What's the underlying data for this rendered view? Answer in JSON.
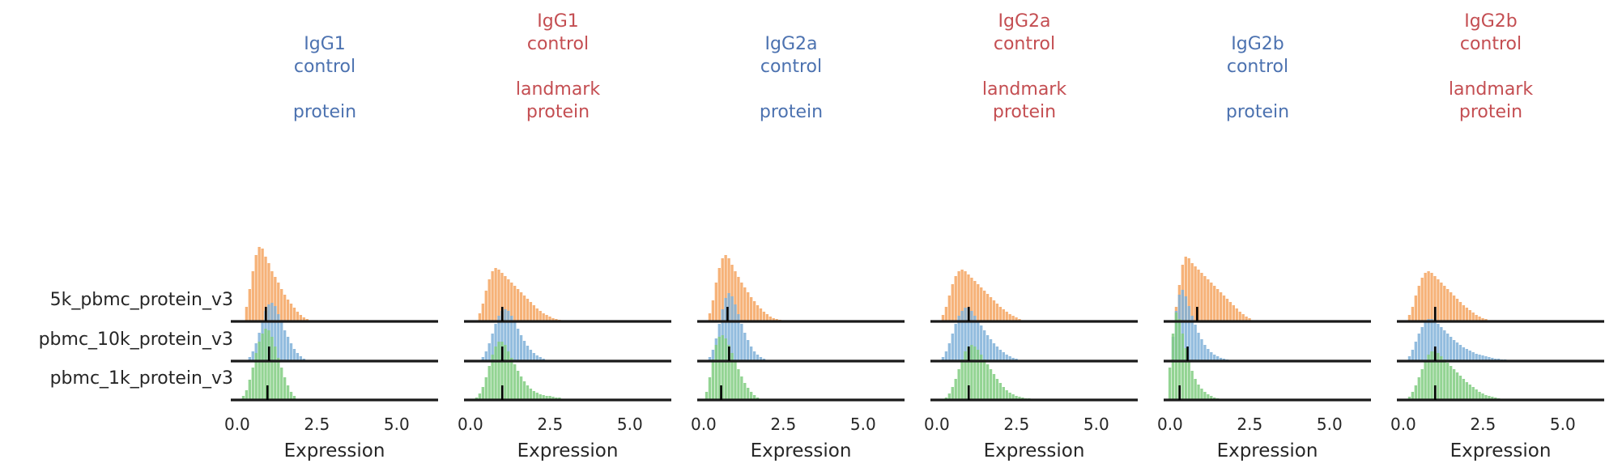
{
  "chart_data": {
    "type": "histogram",
    "xlabel": "Expression",
    "xlim": [
      -0.2,
      6.3
    ],
    "xticks": [
      0.0,
      2.5,
      5.0
    ],
    "xtick_labels": [
      "0.0",
      "2.5",
      "5.0"
    ],
    "grid": false,
    "samples": [
      "5k_pbmc_protein_v3",
      "pbmc_10k_protein_v3",
      "pbmc_1k_protein_v3"
    ],
    "sample_colors": [
      "#f4a460",
      "#7fb0d8",
      "#80cc80"
    ],
    "median_marker_color": "#000000",
    "panels": [
      {
        "title_lines": [
          "IgG1",
          "control",
          "",
          "protein"
        ],
        "title_color": "#4c72b0",
        "medians": [
          0.9,
          1.0,
          0.95
        ],
        "hist": [
          {
            "x": [
              0.3,
              0.4,
              0.5,
              0.6,
              0.7,
              0.8,
              0.9,
              1.0,
              1.1,
              1.2,
              1.3,
              1.4,
              1.5,
              1.6,
              1.7,
              1.8,
              1.9,
              2.0,
              2.1,
              2.2
            ],
            "y": [
              18,
              40,
              62,
              82,
              92,
              90,
              80,
              72,
              62,
              55,
              48,
              40,
              33,
              27,
              22,
              17,
              12,
              8,
              5,
              3
            ]
          },
          {
            "x": [
              0.4,
              0.5,
              0.6,
              0.7,
              0.8,
              0.9,
              1.0,
              1.1,
              1.2,
              1.3,
              1.4,
              1.5,
              1.6,
              1.7,
              1.8,
              1.9,
              2.0,
              2.1
            ],
            "y": [
              5,
              12,
              22,
              35,
              50,
              62,
              70,
              72,
              68,
              58,
              48,
              38,
              30,
              22,
              15,
              10,
              6,
              3
            ]
          },
          {
            "x": [
              0.2,
              0.3,
              0.4,
              0.5,
              0.6,
              0.7,
              0.8,
              0.9,
              1.0,
              1.1,
              1.2,
              1.3,
              1.4,
              1.5,
              1.6,
              1.7,
              1.8
            ],
            "y": [
              5,
              12,
              25,
              40,
              58,
              72,
              82,
              88,
              86,
              78,
              66,
              52,
              40,
              28,
              18,
              10,
              5
            ]
          }
        ]
      },
      {
        "title_lines": [
          "IgG1",
          "control",
          "",
          "landmark",
          "protein"
        ],
        "title_color": "#c44e52",
        "medians": [
          1.0,
          1.0,
          1.0
        ],
        "hist": [
          {
            "x": [
              0.3,
              0.4,
              0.5,
              0.6,
              0.7,
              0.8,
              0.9,
              1.0,
              1.1,
              1.2,
              1.3,
              1.4,
              1.5,
              1.6,
              1.7,
              1.8,
              1.9,
              2.0,
              2.1,
              2.2,
              2.3,
              2.4,
              2.5,
              2.6,
              2.7,
              2.8
            ],
            "y": [
              10,
              22,
              38,
              52,
              62,
              66,
              64,
              60,
              56,
              52,
              48,
              44,
              40,
              36,
              32,
              28,
              24,
              20,
              16,
              13,
              10,
              8,
              6,
              4,
              3,
              2
            ]
          },
          {
            "x": [
              0.4,
              0.5,
              0.6,
              0.7,
              0.8,
              0.9,
              1.0,
              1.1,
              1.2,
              1.3,
              1.4,
              1.5,
              1.6,
              1.7,
              1.8,
              1.9,
              2.0,
              2.1,
              2.2,
              2.3
            ],
            "y": [
              5,
              12,
              22,
              34,
              46,
              56,
              62,
              64,
              62,
              56,
              48,
              40,
              32,
              25,
              19,
              14,
              10,
              7,
              5,
              3
            ]
          },
          {
            "x": [
              0.2,
              0.3,
              0.4,
              0.5,
              0.6,
              0.7,
              0.8,
              0.9,
              1.0,
              1.1,
              1.2,
              1.3,
              1.4,
              1.5,
              1.6,
              1.7,
              1.8,
              1.9,
              2.0,
              2.1,
              2.2,
              2.3,
              2.4,
              2.5,
              2.6,
              2.7,
              2.8
            ],
            "y": [
              3,
              8,
              16,
              28,
              42,
              56,
              66,
              72,
              72,
              68,
              60,
              52,
              44,
              36,
              29,
              23,
              18,
              14,
              11,
              9,
              7,
              6,
              5,
              5,
              4,
              3,
              3
            ]
          }
        ]
      },
      {
        "title_lines": [
          "IgG2a",
          "control",
          "",
          "protein"
        ],
        "title_color": "#4c72b0",
        "medians": [
          0.75,
          0.8,
          0.55
        ],
        "hist": [
          {
            "x": [
              0.2,
              0.3,
              0.4,
              0.5,
              0.6,
              0.7,
              0.8,
              0.9,
              1.0,
              1.1,
              1.2,
              1.3,
              1.4,
              1.5,
              1.6,
              1.7,
              1.8,
              1.9,
              2.0,
              2.1,
              2.2,
              2.3,
              2.4
            ],
            "y": [
              10,
              26,
              48,
              66,
              78,
              82,
              78,
              70,
              62,
              55,
              48,
              42,
              36,
              30,
              25,
              20,
              16,
              12,
              9,
              6,
              4,
              3,
              2
            ]
          },
          {
            "x": [
              0.2,
              0.3,
              0.4,
              0.5,
              0.6,
              0.7,
              0.8,
              0.9,
              1.0,
              1.1,
              1.2,
              1.3,
              1.4,
              1.5,
              1.6,
              1.7,
              1.8,
              1.9
            ],
            "y": [
              5,
              14,
              28,
              46,
              64,
              78,
              84,
              80,
              70,
              58,
              46,
              35,
              26,
              18,
              12,
              8,
              5,
              3
            ]
          },
          {
            "x": [
              0.1,
              0.2,
              0.3,
              0.4,
              0.5,
              0.6,
              0.7,
              0.8,
              0.9,
              1.0,
              1.1,
              1.2,
              1.3,
              1.4,
              1.5,
              1.6,
              1.7
            ],
            "y": [
              10,
              28,
              50,
              68,
              78,
              80,
              76,
              68,
              58,
              48,
              38,
              29,
              21,
              15,
              10,
              6,
              3
            ]
          }
        ]
      },
      {
        "title_lines": [
          "IgG2a",
          "control",
          "",
          "landmark",
          "protein"
        ],
        "title_color": "#c44e52",
        "medians": [
          1.0,
          1.0,
          1.0
        ],
        "hist": [
          {
            "x": [
              0.2,
              0.3,
              0.4,
              0.5,
              0.6,
              0.7,
              0.8,
              0.9,
              1.0,
              1.1,
              1.2,
              1.3,
              1.4,
              1.5,
              1.6,
              1.7,
              1.8,
              1.9,
              2.0,
              2.1,
              2.2,
              2.3,
              2.4,
              2.5,
              2.6
            ],
            "y": [
              8,
              18,
              32,
              46,
              56,
              62,
              64,
              62,
              58,
              54,
              50,
              46,
              42,
              38,
              34,
              30,
              26,
              22,
              18,
              15,
              12,
              9,
              7,
              5,
              3
            ]
          },
          {
            "x": [
              0.2,
              0.3,
              0.4,
              0.5,
              0.6,
              0.7,
              0.8,
              0.9,
              1.0,
              1.1,
              1.2,
              1.3,
              1.4,
              1.5,
              1.6,
              1.7,
              1.8,
              1.9,
              2.0,
              2.1,
              2.2,
              2.3,
              2.4,
              2.5
            ],
            "y": [
              5,
              12,
              22,
              34,
              46,
              56,
              62,
              66,
              66,
              62,
              56,
              50,
              44,
              38,
              32,
              27,
              22,
              18,
              14,
              11,
              8,
              6,
              4,
              3
            ]
          },
          {
            "x": [
              0.3,
              0.4,
              0.5,
              0.6,
              0.7,
              0.8,
              0.9,
              1.0,
              1.1,
              1.2,
              1.3,
              1.4,
              1.5,
              1.6,
              1.7,
              1.8,
              1.9,
              2.0,
              2.1,
              2.2,
              2.3,
              2.4,
              2.5,
              2.6,
              2.7,
              2.8,
              2.9
            ],
            "y": [
              3,
              8,
              16,
              26,
              38,
              50,
              60,
              66,
              68,
              66,
              62,
              56,
              50,
              44,
              38,
              32,
              26,
              21,
              16,
              12,
              9,
              7,
              5,
              4,
              3,
              2,
              2
            ]
          }
        ]
      },
      {
        "title_lines": [
          "IgG2b",
          "control",
          "",
          "protein"
        ],
        "title_color": "#4c72b0",
        "medians": [
          0.85,
          0.55,
          0.3
        ],
        "hist": [
          {
            "x": [
              0.2,
              0.3,
              0.4,
              0.5,
              0.6,
              0.7,
              0.8,
              0.9,
              1.0,
              1.1,
              1.2,
              1.3,
              1.4,
              1.5,
              1.6,
              1.7,
              1.8,
              1.9,
              2.0,
              2.1,
              2.2,
              2.3,
              2.4,
              2.5
            ],
            "y": [
              18,
              45,
              70,
              80,
              78,
              72,
              68,
              64,
              60,
              56,
              52,
              48,
              44,
              40,
              36,
              32,
              28,
              24,
              20,
              16,
              12,
              9,
              6,
              4
            ]
          },
          {
            "x": [
              0.1,
              0.2,
              0.3,
              0.4,
              0.5,
              0.6,
              0.7,
              0.8,
              0.9,
              1.0,
              1.1,
              1.2,
              1.3,
              1.4,
              1.5,
              1.6,
              1.7,
              1.8
            ],
            "y": [
              30,
              62,
              82,
              88,
              80,
              68,
              56,
              45,
              35,
              27,
              20,
              15,
              11,
              8,
              6,
              4,
              3,
              2
            ]
          },
          {
            "x": [
              0.0,
              0.1,
              0.2,
              0.3,
              0.4,
              0.5,
              0.6,
              0.7,
              0.8,
              0.9,
              1.0,
              1.1,
              1.2,
              1.3,
              1.4,
              1.5
            ],
            "y": [
              40,
              82,
              108,
              100,
              82,
              64,
              48,
              36,
              26,
              19,
              14,
              10,
              7,
              5,
              3,
              2
            ]
          }
        ]
      },
      {
        "title_lines": [
          "IgG2b",
          "control",
          "",
          "landmark",
          "protein"
        ],
        "title_color": "#c44e52",
        "medians": [
          1.0,
          1.0,
          1.0
        ],
        "hist": [
          {
            "x": [
              0.2,
              0.3,
              0.4,
              0.5,
              0.6,
              0.7,
              0.8,
              0.9,
              1.0,
              1.1,
              1.2,
              1.3,
              1.4,
              1.5,
              1.6,
              1.7,
              1.8,
              1.9,
              2.0,
              2.1,
              2.2,
              2.3,
              2.4,
              2.5,
              2.6
            ],
            "y": [
              8,
              18,
              32,
              44,
              54,
              60,
              62,
              60,
              56,
              52,
              48,
              44,
              40,
              36,
              32,
              28,
              24,
              20,
              17,
              14,
              11,
              8,
              6,
              4,
              3
            ]
          },
          {
            "x": [
              0.2,
              0.3,
              0.4,
              0.5,
              0.6,
              0.7,
              0.8,
              0.9,
              1.0,
              1.1,
              1.2,
              1.3,
              1.4,
              1.5,
              1.6,
              1.7,
              1.8,
              1.9,
              2.0,
              2.1,
              2.2,
              2.3,
              2.4,
              2.5,
              2.6,
              2.7,
              2.8,
              2.9,
              3.0,
              3.1,
              3.2
            ],
            "y": [
              6,
              14,
              24,
              34,
              42,
              48,
              52,
              52,
              50,
              46,
              42,
              38,
              34,
              30,
              26,
              23,
              20,
              17,
              15,
              13,
              11,
              9,
              8,
              7,
              6,
              5,
              4,
              3,
              3,
              2,
              2
            ]
          },
          {
            "x": [
              0.2,
              0.3,
              0.4,
              0.5,
              0.6,
              0.7,
              0.8,
              0.9,
              1.0,
              1.1,
              1.2,
              1.3,
              1.4,
              1.5,
              1.6,
              1.7,
              1.8,
              1.9,
              2.0,
              2.1,
              2.2,
              2.3,
              2.4,
              2.5,
              2.6,
              2.7,
              2.8,
              2.9,
              3.0
            ],
            "y": [
              4,
              10,
              18,
              28,
              38,
              48,
              56,
              60,
              60,
              58,
              54,
              50,
              46,
              42,
              38,
              34,
              30,
              26,
              22,
              19,
              16,
              13,
              10,
              8,
              6,
              5,
              4,
              3,
              2
            ]
          }
        ]
      }
    ]
  }
}
